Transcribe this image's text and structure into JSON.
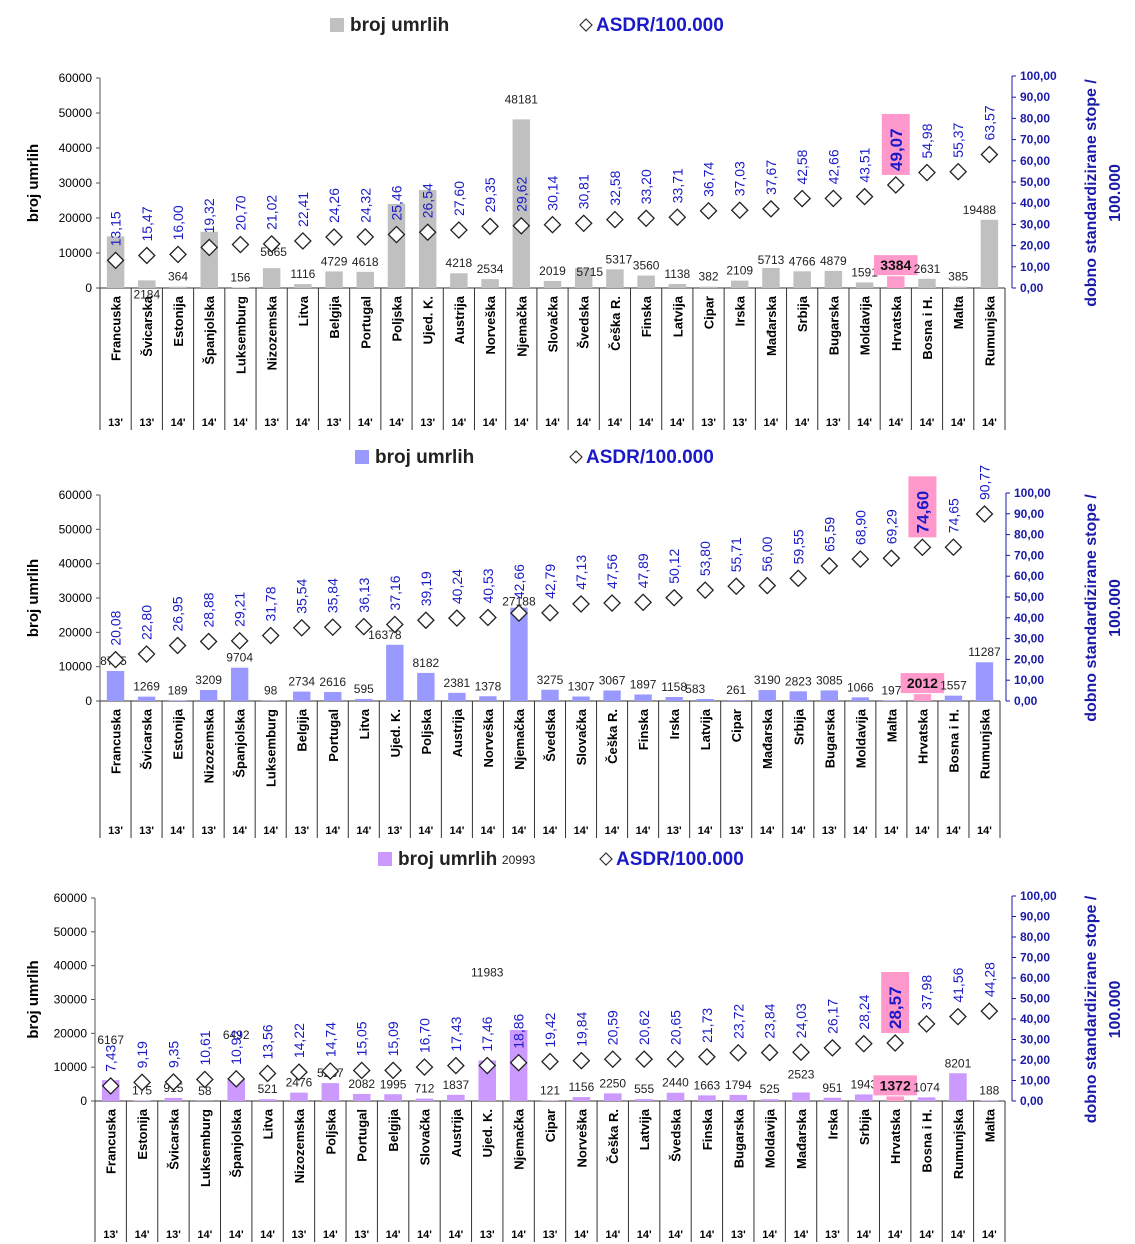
{
  "legend": {
    "bars_label": "broj umrlih",
    "asdr_label": "ASDR/100.000"
  },
  "axes": {
    "y_left_label": "broj umrlih",
    "y_right_label_line1": "dobno standardizirane stope /",
    "y_right_label_line2": "100.000",
    "y_left_ticks": [
      "0",
      "10000",
      "20000",
      "30000",
      "40000",
      "50000",
      "60000"
    ],
    "y_right_ticks": [
      "0,00",
      "10,00",
      "20,00",
      "30,00",
      "40,00",
      "50,00",
      "60,00",
      "70,00",
      "80,00",
      "90,00",
      "100,00"
    ]
  },
  "colors": {
    "panel1_bar": "#c0c0c0",
    "panel2_bar": "#9999ff",
    "panel3_bar": "#cc99ff",
    "highlight_bar": "#ff9ccc",
    "highlight_box": "#ff99cc",
    "asdr_text": "#1a1ac8",
    "right_axis": "#1a1aa8"
  },
  "chart_data": [
    {
      "type": "bar",
      "series": [
        {
          "name": "broj umrlih",
          "values": [
            14754,
            2184,
            364,
            16080,
            156,
            5665,
            1116,
            4729,
            4618,
            24020,
            28000,
            4218,
            2534,
            48181,
            2019,
            5715,
            5317,
            3560,
            1138,
            382,
            2109,
            5713,
            4766,
            4879,
            1591,
            3384,
            2631,
            385,
            19488
          ]
        },
        {
          "name": "ASDR/100.000",
          "values": [
            13.15,
            15.47,
            16.0,
            19.32,
            20.7,
            21.02,
            22.41,
            24.26,
            24.32,
            25.46,
            26.54,
            27.6,
            29.35,
            29.62,
            30.14,
            30.81,
            32.58,
            33.2,
            33.71,
            36.74,
            37.03,
            37.67,
            42.58,
            42.66,
            43.51,
            49.07,
            54.98,
            55.37,
            63.57
          ]
        }
      ],
      "categories": [
        "Francuska",
        "Švicarska",
        "Estonija",
        "Španjolska",
        "Luksemburg",
        "Nizozemska",
        "Litva",
        "Belgija",
        "Portugal",
        "Poljska",
        "Ujed. K.",
        "Austrija",
        "Norveška",
        "Njemačka",
        "Slovačka",
        "Švedska",
        "Češka R.",
        "Finska",
        "Latvija",
        "Cipar",
        "Irska",
        "Mađarska",
        "Srbija",
        "Bugarska",
        "Moldavija",
        "Hrvatska",
        "Bosna i H.",
        "Malta",
        "Rumunjska"
      ],
      "years": [
        "13'",
        "13'",
        "14'",
        "14'",
        "14'",
        "13'",
        "14'",
        "13'",
        "14'",
        "14'",
        "13'",
        "14'",
        "14'",
        "14'",
        "14'",
        "14'",
        "14'",
        "14'",
        "14'",
        "13'",
        "13'",
        "14'",
        "14'",
        "13'",
        "14'",
        "14'",
        "14'",
        "14'",
        "14'"
      ],
      "count_labels": [
        "",
        "2184",
        "364",
        "",
        "156",
        "5665",
        "1116",
        "4729",
        "4618",
        "",
        "",
        "4218",
        "2534",
        "48181",
        "2019",
        "5715",
        "5317",
        "3560",
        "1138",
        "382",
        "2109",
        "5713",
        "4766",
        "4879",
        "1591",
        "3384",
        "2631",
        "385",
        "19488"
      ],
      "asdr_labels": [
        "13,15",
        "15,47",
        "16,00",
        "19,32",
        "20,70",
        "21,02",
        "22,41",
        "24,26",
        "24,32",
        "25,46",
        "26,54",
        "27,60",
        "29,35",
        "29,62",
        "30,14",
        "30,81",
        "32,58",
        "33,20",
        "33,71",
        "36,74",
        "37,03",
        "37,67",
        "42,58",
        "42,66",
        "43,51",
        "49,07",
        "54,98",
        "55,37",
        "63,57"
      ],
      "highlight": "Hrvatska",
      "ylim": [
        0,
        60000
      ],
      "y2lim": [
        0,
        100
      ]
    },
    {
      "type": "bar",
      "series": [
        {
          "name": "broj umrlih",
          "values": [
            8755,
            1269,
            189,
            3209,
            9704,
            98,
            2734,
            2616,
            595,
            16378,
            8182,
            2381,
            1378,
            27188,
            3275,
            1307,
            3067,
            1897,
            1158,
            583,
            261,
            3190,
            2823,
            3085,
            1066,
            197,
            2012,
            1557,
            11287
          ]
        },
        {
          "name": "ASDR/100.000",
          "values": [
            20.08,
            22.8,
            26.95,
            28.88,
            29.21,
            31.78,
            35.54,
            35.84,
            36.13,
            37.16,
            39.19,
            40.24,
            40.53,
            42.66,
            42.79,
            47.13,
            47.56,
            47.89,
            50.12,
            53.8,
            55.71,
            56.0,
            59.55,
            65.59,
            68.9,
            69.29,
            74.6,
            74.65,
            90.77
          ]
        }
      ],
      "categories": [
        "Francuska",
        "Švicarska",
        "Estonija",
        "Nizozemska",
        "Španjolska",
        "Luksemburg",
        "Belgija",
        "Portugal",
        "Litva",
        "Ujed. K.",
        "Poljska",
        "Austrija",
        "Norveška",
        "Njemačka",
        "Švedska",
        "Slovačka",
        "Češka R.",
        "Finska",
        "Irska",
        "Latvija",
        "Cipar",
        "Mađarska",
        "Srbija",
        "Bugarska",
        "Moldavija",
        "Malta",
        "Hrvatska",
        "Bosna i H.",
        "Rumunjska"
      ],
      "years": [
        "13'",
        "13'",
        "14'",
        "13'",
        "14'",
        "14'",
        "13'",
        "14'",
        "14'",
        "13'",
        "14'",
        "14'",
        "14'",
        "14'",
        "14'",
        "14'",
        "14'",
        "14'",
        "13'",
        "14'",
        "13'",
        "14'",
        "14'",
        "13'",
        "14'",
        "14'",
        "14'",
        "14'",
        "14'"
      ],
      "count_labels": [
        "8755",
        "1269",
        "189",
        "3209",
        "9704",
        "98",
        "2734",
        "2616",
        "595",
        "16378",
        "8182",
        "2381",
        "1378",
        "27188",
        "3275",
        "1307",
        "3067",
        "1897",
        "1158",
        "583",
        "261",
        "3190",
        "2823",
        "3085",
        "1066",
        "197",
        "2012",
        "1557",
        "11287"
      ],
      "asdr_labels": [
        "20,08",
        "22,80",
        "26,95",
        "28,88",
        "29,21",
        "31,78",
        "35,54",
        "35,84",
        "36,13",
        "37,16",
        "39,19",
        "40,24",
        "40,53",
        "42,66",
        "42,79",
        "47,13",
        "47,56",
        "47,89",
        "50,12",
        "53,80",
        "55,71",
        "56,00",
        "59,55",
        "65,59",
        "68,90",
        "69,29",
        "74,60",
        "74,65",
        "90,77"
      ],
      "highlight": "Hrvatska",
      "ylim": [
        0,
        60000
      ],
      "y2lim": [
        0,
        100
      ]
    },
    {
      "type": "bar",
      "series": [
        {
          "name": "broj umrlih",
          "values": [
            6167,
            175,
            915,
            58,
            6492,
            521,
            2476,
            5287,
            2082,
            1995,
            712,
            1837,
            11983,
            20993,
            121,
            1156,
            2250,
            555,
            2440,
            1663,
            1794,
            525,
            2523,
            951,
            1943,
            1372,
            1074,
            8201,
            188
          ]
        },
        {
          "name": "ASDR/100.000",
          "values": [
            7.43,
            9.19,
            9.35,
            10.61,
            10.92,
            13.56,
            14.22,
            14.74,
            15.05,
            15.09,
            16.7,
            17.43,
            17.46,
            18.86,
            19.42,
            19.84,
            20.59,
            20.62,
            20.65,
            21.73,
            23.72,
            23.84,
            24.03,
            26.17,
            28.24,
            28.57,
            37.98,
            41.56,
            44.28
          ]
        }
      ],
      "categories": [
        "Francuska",
        "Estonija",
        "Švicarska",
        "Luksemburg",
        "Španjolska",
        "Litva",
        "Nizozemska",
        "Poljska",
        "Portugal",
        "Belgija",
        "Slovačka",
        "Austrija",
        "Ujed. K.",
        "Njemačka",
        "Cipar",
        "Norveška",
        "Češka R.",
        "Latvija",
        "Švedska",
        "Finska",
        "Bugarska",
        "Moldavija",
        "Mađarska",
        "Irska",
        "Srbija",
        "Hrvatska",
        "Bosna i H.",
        "Rumunjska",
        "Malta"
      ],
      "years": [
        "13'",
        "14'",
        "13'",
        "14'",
        "14'",
        "14'",
        "13'",
        "14'",
        "13'",
        "14'",
        "14'",
        "14'",
        "13'",
        "14'",
        "13'",
        "14'",
        "14'",
        "14'",
        "14'",
        "14'",
        "13'",
        "14'",
        "14'",
        "13'",
        "14'",
        "14'",
        "14'",
        "14'",
        "14'"
      ],
      "count_labels": [
        "6167",
        "175",
        "915",
        "58",
        "6492",
        "521",
        "2476",
        "5287",
        "2082",
        "1995",
        "712",
        "1837",
        "11983",
        "20993",
        "121",
        "1156",
        "2250",
        "555",
        "2440",
        "1663",
        "1794",
        "525",
        "2523",
        "951",
        "1943",
        "1372",
        "1074",
        "8201",
        "188"
      ],
      "asdr_labels": [
        "7,43",
        "9,19",
        "9,35",
        "10,61",
        "10,92",
        "13,56",
        "14,22",
        "14,74",
        "15,05",
        "15,09",
        "16,70",
        "17,43",
        "17,46",
        "18,86",
        "19,42",
        "19,84",
        "20,59",
        "20,62",
        "20,65",
        "21,73",
        "23,72",
        "23,84",
        "24,03",
        "26,17",
        "28,24",
        "28,57",
        "37,98",
        "41,56",
        "44,28"
      ],
      "highlight": "Hrvatska",
      "ylim": [
        0,
        60000
      ],
      "y2lim": [
        0,
        100
      ]
    }
  ]
}
